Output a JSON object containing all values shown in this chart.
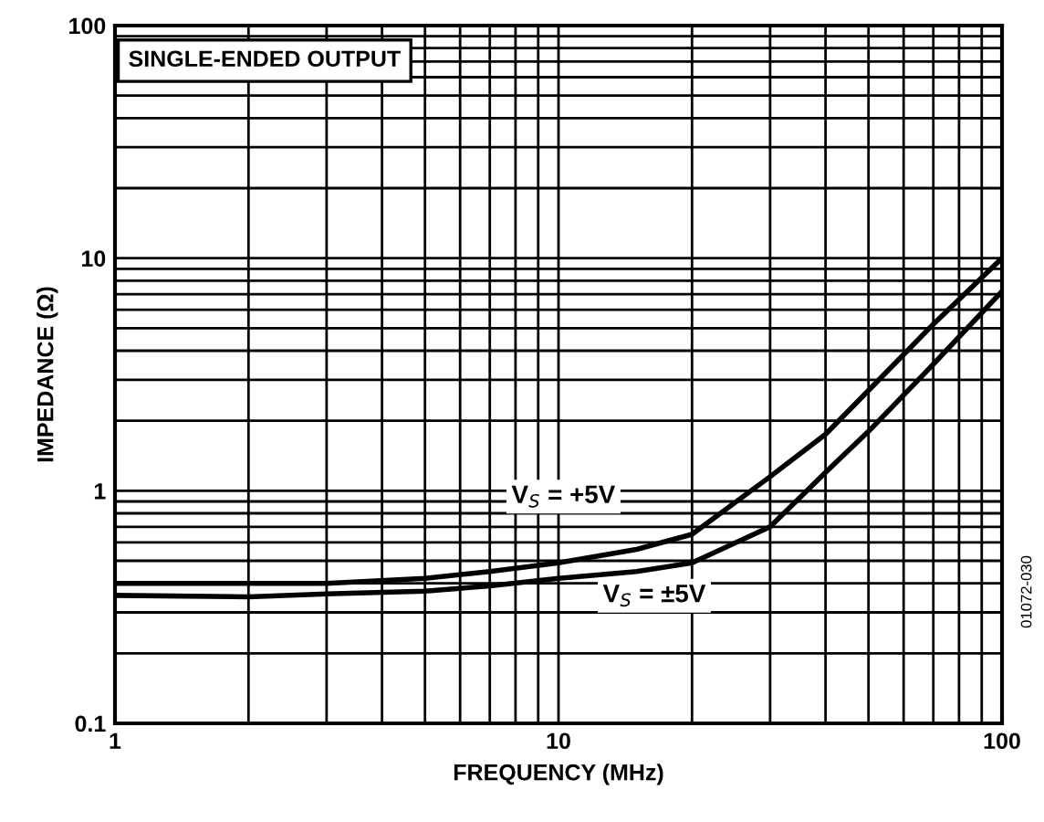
{
  "chart_data": {
    "type": "line",
    "xlabel": "FREQUENCY (MHz)",
    "ylabel": "IMPEDANCE (Ω)",
    "log": "xy",
    "xlim": [
      1,
      100
    ],
    "xticks": [
      1,
      10,
      100
    ],
    "ylim": [
      0.1,
      100
    ],
    "yticks": [
      0.1,
      1,
      10,
      100
    ],
    "grid": true,
    "legend": false,
    "marker": "none",
    "line_style": "solid",
    "x": [
      1,
      2,
      3,
      5,
      7,
      10,
      15,
      20,
      30,
      40,
      50,
      70,
      100
    ],
    "series": [
      {
        "color": "#000000",
        "values": [
          0.4,
          0.4,
          0.4,
          0.42,
          0.45,
          0.49,
          0.56,
          0.65,
          1.15,
          1.75,
          2.7,
          5.2,
          10
        ]
      },
      {
        "color": "#000000",
        "values": [
          0.355,
          0.35,
          0.36,
          0.37,
          0.39,
          0.42,
          0.45,
          0.49,
          0.7,
          1.2,
          1.8,
          3.5,
          7.2
        ]
      }
    ],
    "annotations": [
      "SINGLE-ENDED OUTPUT",
      "01072-030",
      "V$_{S}$ = +5V",
      "V$_{S}$ = ±5V"
    ]
  }
}
